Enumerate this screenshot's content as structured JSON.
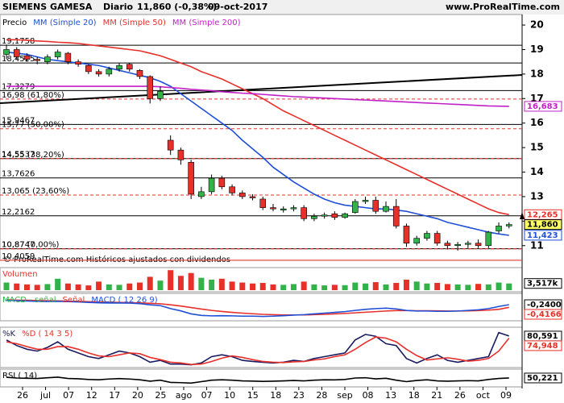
{
  "chart_data": {
    "type": "candlestick",
    "title": "SIEMENS GAMESA",
    "period": "Diario",
    "last_quote": "11,860 (-0,38%)",
    "date": "09-oct-2017",
    "source": "www.ProRealTime.com",
    "footnote": "© ProRealTime.com Históricos ajustados con dividendos",
    "price_label": "Precio",
    "up_color": "#33b24a",
    "down_color": "#e8302a",
    "open": [
      18.8,
      19.0,
      18.75,
      18.6,
      18.5,
      18.7,
      18.85,
      18.5,
      18.35,
      18.1,
      18.0,
      18.2,
      18.4,
      18.15,
      17.9,
      17.0,
      15.3,
      14.9,
      14.4,
      13.0,
      13.2,
      13.75,
      13.4,
      13.15,
      13.0,
      12.9,
      12.55,
      12.45,
      12.5,
      12.55,
      12.1,
      12.2,
      12.3,
      12.15,
      12.35,
      12.8,
      12.85,
      12.4,
      12.6,
      11.8,
      11.1,
      11.3,
      11.5,
      11.1,
      11.0,
      11.05,
      11.1,
      11.0,
      11.6,
      11.8
    ],
    "high": [
      19.2,
      19.1,
      18.85,
      18.7,
      18.8,
      19.0,
      18.9,
      18.6,
      18.4,
      18.2,
      18.3,
      18.45,
      18.45,
      18.2,
      17.95,
      17.5,
      15.5,
      15.0,
      14.5,
      13.4,
      13.9,
      13.85,
      13.5,
      13.25,
      13.1,
      13.0,
      12.7,
      12.6,
      12.65,
      12.65,
      12.3,
      12.35,
      12.4,
      12.35,
      12.9,
      13.0,
      13.0,
      12.8,
      12.9,
      11.9,
      11.4,
      11.6,
      11.6,
      11.2,
      11.15,
      11.2,
      11.25,
      11.6,
      11.95,
      11.95
    ],
    "low": [
      18.6,
      18.6,
      18.5,
      18.4,
      18.4,
      18.6,
      18.4,
      18.3,
      18.0,
      17.9,
      17.9,
      18.1,
      18.1,
      17.8,
      16.8,
      16.9,
      14.7,
      14.3,
      12.9,
      12.9,
      13.1,
      13.3,
      13.05,
      12.9,
      12.85,
      12.45,
      12.4,
      12.35,
      12.4,
      12.0,
      12.0,
      12.1,
      12.05,
      12.1,
      12.3,
      12.7,
      12.3,
      12.35,
      11.7,
      10.95,
      11.0,
      11.2,
      11.0,
      10.85,
      10.8,
      10.9,
      10.9,
      10.9,
      11.5,
      11.7
    ],
    "close": [
      19.0,
      18.7,
      18.6,
      18.55,
      18.7,
      18.9,
      18.5,
      18.4,
      18.1,
      18.0,
      18.2,
      18.35,
      18.2,
      17.9,
      17.0,
      17.3,
      14.9,
      14.5,
      13.1,
      13.2,
      13.75,
      13.4,
      13.15,
      13.0,
      12.95,
      12.55,
      12.5,
      12.5,
      12.55,
      12.1,
      12.2,
      12.25,
      12.15,
      12.3,
      12.8,
      12.85,
      12.4,
      12.6,
      11.8,
      11.1,
      11.3,
      11.5,
      11.1,
      11.0,
      11.05,
      11.1,
      11.0,
      11.55,
      11.8,
      11.86
    ],
    "series": [
      {
        "name": "MM (Simple 20)",
        "color": "#1f4fd6",
        "values": [
          18.9,
          18.85,
          18.8,
          18.7,
          18.6,
          18.55,
          18.5,
          18.45,
          18.4,
          18.35,
          18.25,
          18.15,
          18.05,
          17.95,
          17.85,
          17.7,
          17.5,
          17.2,
          16.9,
          16.6,
          16.3,
          16.0,
          15.7,
          15.3,
          14.95,
          14.6,
          14.2,
          13.9,
          13.6,
          13.35,
          13.1,
          12.9,
          12.75,
          12.65,
          12.6,
          12.55,
          12.5,
          12.5,
          12.45,
          12.4,
          12.3,
          12.2,
          12.1,
          11.95,
          11.85,
          11.75,
          11.65,
          11.55,
          11.48,
          11.42
        ]
      },
      {
        "name": "MM (Simple 50)",
        "color": "#e8302a",
        "values": [
          19.4,
          19.4,
          19.38,
          19.35,
          19.33,
          19.3,
          19.28,
          19.25,
          19.2,
          19.15,
          19.1,
          19.05,
          19.0,
          18.95,
          18.85,
          18.75,
          18.6,
          18.45,
          18.3,
          18.1,
          17.95,
          17.8,
          17.6,
          17.4,
          17.2,
          17.0,
          16.75,
          16.5,
          16.3,
          16.1,
          15.9,
          15.7,
          15.5,
          15.3,
          15.1,
          14.9,
          14.7,
          14.5,
          14.3,
          14.1,
          13.9,
          13.7,
          13.5,
          13.3,
          13.1,
          12.9,
          12.7,
          12.5,
          12.35,
          12.265
        ]
      },
      {
        "name": "MM (Simple 200)",
        "color": "#c31fc9",
        "values": [
          17.5,
          17.5,
          17.5,
          17.5,
          17.5,
          17.5,
          17.5,
          17.5,
          17.5,
          17.5,
          17.5,
          17.5,
          17.5,
          17.5,
          17.5,
          17.48,
          17.45,
          17.42,
          17.38,
          17.35,
          17.32,
          17.28,
          17.25,
          17.22,
          17.2,
          17.17,
          17.14,
          17.11,
          17.08,
          17.06,
          17.04,
          17.02,
          17.0,
          16.98,
          16.96,
          16.94,
          16.92,
          16.9,
          16.88,
          16.86,
          16.84,
          16.82,
          16.8,
          16.78,
          16.76,
          16.74,
          16.72,
          16.7,
          16.69,
          16.683
        ]
      }
    ],
    "ylim": [
      10.4,
      20.43
    ],
    "yticks": [
      20,
      19,
      18,
      17,
      16,
      15,
      14,
      13,
      12,
      11
    ],
    "levels": [
      {
        "value": 19.1758,
        "label": "19,1758",
        "color": "#000000",
        "dashed": false
      },
      {
        "value": 18.4525,
        "label": "18,4525",
        "color": "#000000",
        "dashed": false
      },
      {
        "value": 17.3279,
        "label": "17,3279",
        "color": "#000000",
        "dashed": false
      },
      {
        "value": 16.98,
        "label": "16,98 (61,80%)",
        "color": "#e8302a",
        "dashed": true
      },
      {
        "value": 15.9467,
        "label": "15,9467",
        "color": "#000000",
        "dashed": false
      },
      {
        "value": 15.77,
        "label": "15,77 (50,00%)",
        "color": "#e8302a",
        "dashed": true
      },
      {
        "value": 14.5537,
        "label": "14,5537",
        "color": "#000000",
        "dashed": false
      },
      {
        "value": 14.55,
        "label": "14,55 (38,20%)",
        "color": "#e8302a",
        "dashed": true
      },
      {
        "value": 13.7626,
        "label": "13,7626",
        "color": "#000000",
        "dashed": false
      },
      {
        "value": 13.065,
        "label": "13,065 (23,60%)",
        "color": "#e8302a",
        "dashed": true
      },
      {
        "value": 12.2162,
        "label": "12,2162",
        "color": "#000000",
        "dashed": false
      },
      {
        "value": 10.8747,
        "label": "10,8747",
        "color": "#000000",
        "dashed": false
      },
      {
        "value": 10.87,
        "label": "10,87 (0,00%)",
        "color": "#e8302a",
        "dashed": true
      },
      {
        "value": 10.4059,
        "label": "10,4059",
        "color": "#e8302a",
        "dashed": false
      }
    ],
    "tags": [
      {
        "value": 16.683,
        "label": "16,683",
        "color": "#c31fc9"
      },
      {
        "value": 12.265,
        "label": "12,265",
        "color": "#e8302a"
      },
      {
        "value": 11.86,
        "label": "11,860",
        "color": "#000000",
        "background": "#ffff66"
      },
      {
        "value": 11.423,
        "label": "11,423",
        "color": "#1f4fd6"
      }
    ],
    "xlabels": [
      "26",
      "jul",
      "07",
      "12",
      "17",
      "20",
      "25",
      "ago",
      "07",
      "10",
      "15",
      "18",
      "23",
      "28",
      "sep",
      "08",
      "13",
      "18",
      "21",
      "26",
      "oct",
      "09"
    ],
    "panels": [
      {
        "type": "bar",
        "ylim": [
          0,
          11000
        ],
        "series": [
          {
            "name": "Volumen",
            "color": "#e8302a",
            "values": [
              4000,
              3500,
              3000,
              2800,
              3200,
              6000,
              3500,
              3000,
              2500,
              4500,
              3000,
              2800,
              3500,
              4000,
              7000,
              5000,
              10500,
              7500,
              9000,
              6500,
              5500,
              6000,
              4500,
              4000,
              3500,
              3800,
              3000,
              2800,
              3200,
              4500,
              3000,
              2500,
              2800,
              2600,
              4000,
              3500,
              4200,
              3000,
              3800,
              5500,
              4500,
              3500,
              3800,
              3200,
              3000,
              2800,
              3300,
              3000,
              4000,
              3517
            ]
          }
        ],
        "tags": [
          {
            "value": 3517,
            "label": "3,517k",
            "color": "#000000"
          }
        ]
      },
      {
        "type": "line",
        "ylim": [
          -1.2,
          0.4
        ],
        "histogram_label": "MACD - señal",
        "histogram_color": "#33b24a",
        "series": [
          {
            "name": "Señal",
            "color": "#e8302a",
            "values": [
              0.08,
              0.06,
              0.05,
              0.03,
              0.02,
              0.01,
              0.0,
              -0.02,
              -0.04,
              -0.06,
              -0.08,
              -0.09,
              -0.11,
              -0.12,
              -0.15,
              -0.18,
              -0.25,
              -0.33,
              -0.43,
              -0.53,
              -0.62,
              -0.69,
              -0.75,
              -0.8,
              -0.84,
              -0.88,
              -0.9,
              -0.92,
              -0.92,
              -0.92,
              -0.9,
              -0.88,
              -0.85,
              -0.82,
              -0.78,
              -0.74,
              -0.7,
              -0.66,
              -0.63,
              -0.63,
              -0.64,
              -0.64,
              -0.65,
              -0.66,
              -0.66,
              -0.65,
              -0.63,
              -0.6,
              -0.55,
              -0.4166
            ]
          },
          {
            "name": "MACD ( 12 26 9)",
            "color": "#1f4fd6",
            "values": [
              0.05,
              0.03,
              0.0,
              -0.02,
              -0.03,
              -0.02,
              -0.04,
              -0.06,
              -0.09,
              -0.12,
              -0.13,
              -0.13,
              -0.14,
              -0.17,
              -0.25,
              -0.3,
              -0.5,
              -0.65,
              -0.85,
              -0.95,
              -0.98,
              -0.97,
              -0.98,
              -1.0,
              -1.0,
              -1.02,
              -1.0,
              -0.97,
              -0.93,
              -0.9,
              -0.85,
              -0.8,
              -0.75,
              -0.7,
              -0.62,
              -0.55,
              -0.5,
              -0.47,
              -0.52,
              -0.62,
              -0.66,
              -0.66,
              -0.68,
              -0.68,
              -0.66,
              -0.62,
              -0.58,
              -0.5,
              -0.36,
              -0.24
            ]
          }
        ],
        "tags": [
          {
            "value": -0.24,
            "label": "-0,2400",
            "color": "#000000"
          },
          {
            "value": -0.4166,
            "label": "-0,4166",
            "color": "#e8302a"
          }
        ]
      },
      {
        "type": "line",
        "ylim": [
          0,
          100
        ],
        "series": [
          {
            "name": "%K",
            "color": "#1a1a60",
            "values": [
              70,
              55,
              45,
              40,
              50,
              65,
              45,
              35,
              25,
              20,
              30,
              40,
              35,
              25,
              10,
              15,
              5,
              5,
              3,
              8,
              25,
              30,
              25,
              15,
              12,
              10,
              8,
              10,
              15,
              12,
              20,
              25,
              30,
              35,
              70,
              85,
              80,
              60,
              55,
              20,
              8,
              20,
              30,
              15,
              10,
              15,
              20,
              25,
              90,
              80.591
            ]
          },
          {
            "name": "%D ( 14 3 5)",
            "color": "#e8302a",
            "values": [
              65,
              60,
              52,
              45,
              45,
              52,
              52,
              45,
              35,
              27,
              25,
              30,
              35,
              33,
              23,
              17,
              10,
              8,
              4,
              5,
              12,
              21,
              27,
              23,
              17,
              12,
              10,
              9,
              11,
              12,
              16,
              19,
              25,
              30,
              45,
              63,
              78,
              75,
              65,
              45,
              28,
              16,
              19,
              22,
              18,
              13,
              15,
              20,
              40,
              74.948
            ]
          }
        ],
        "tags": [
          {
            "value": 80.591,
            "label": "80,591",
            "color": "#000000"
          },
          {
            "value": 74.948,
            "label": "74,948",
            "color": "#e8302a"
          }
        ]
      },
      {
        "type": "line",
        "ylim": [
          0,
          100
        ],
        "series": [
          {
            "name": "RSI ( 14)",
            "color": "#000000",
            "values": [
              55,
              50,
              48,
              47,
              52,
              56,
              47,
              45,
              40,
              38,
              43,
              46,
              43,
              38,
              28,
              35,
              20,
              18,
              15,
              25,
              35,
              38,
              35,
              30,
              29,
              27,
              28,
              30,
              33,
              30,
              35,
              38,
              37,
              40,
              50,
              52,
              44,
              48,
              35,
              25,
              33,
              38,
              30,
              28,
              30,
              32,
              30,
              40,
              47,
              50.221
            ]
          }
        ],
        "tags": [
          {
            "value": 50.221,
            "label": "50,221",
            "color": "#000000"
          }
        ]
      }
    ]
  }
}
